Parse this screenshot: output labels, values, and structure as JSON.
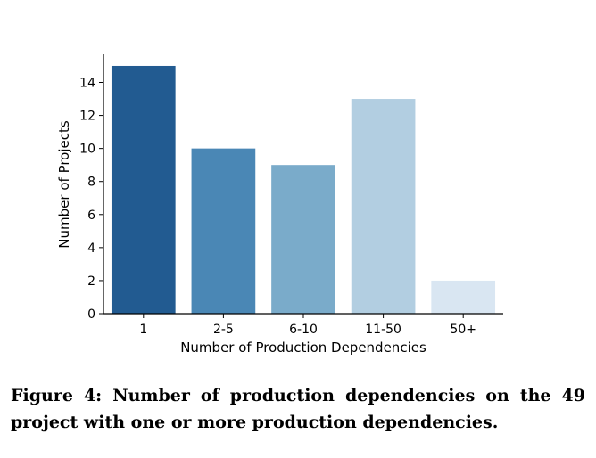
{
  "chart_data": {
    "type": "bar",
    "categories": [
      "1",
      "2-5",
      "6-10",
      "11-50",
      "50+"
    ],
    "values": [
      15,
      10,
      9,
      13,
      2
    ],
    "colors": [
      "#225b91",
      "#4a87b5",
      "#7aabca",
      "#b2cee1",
      "#d9e6f2"
    ],
    "xlabel": "Number of Production Dependencies",
    "ylabel": "Number of Projects",
    "ylim": [
      0,
      15.7
    ],
    "yticks": [
      0,
      2,
      4,
      6,
      8,
      10,
      12,
      14
    ],
    "grid": false,
    "legend": "none"
  },
  "caption": "Figure 4: Number of production dependencies on the 49 project with one or more production dependencies."
}
